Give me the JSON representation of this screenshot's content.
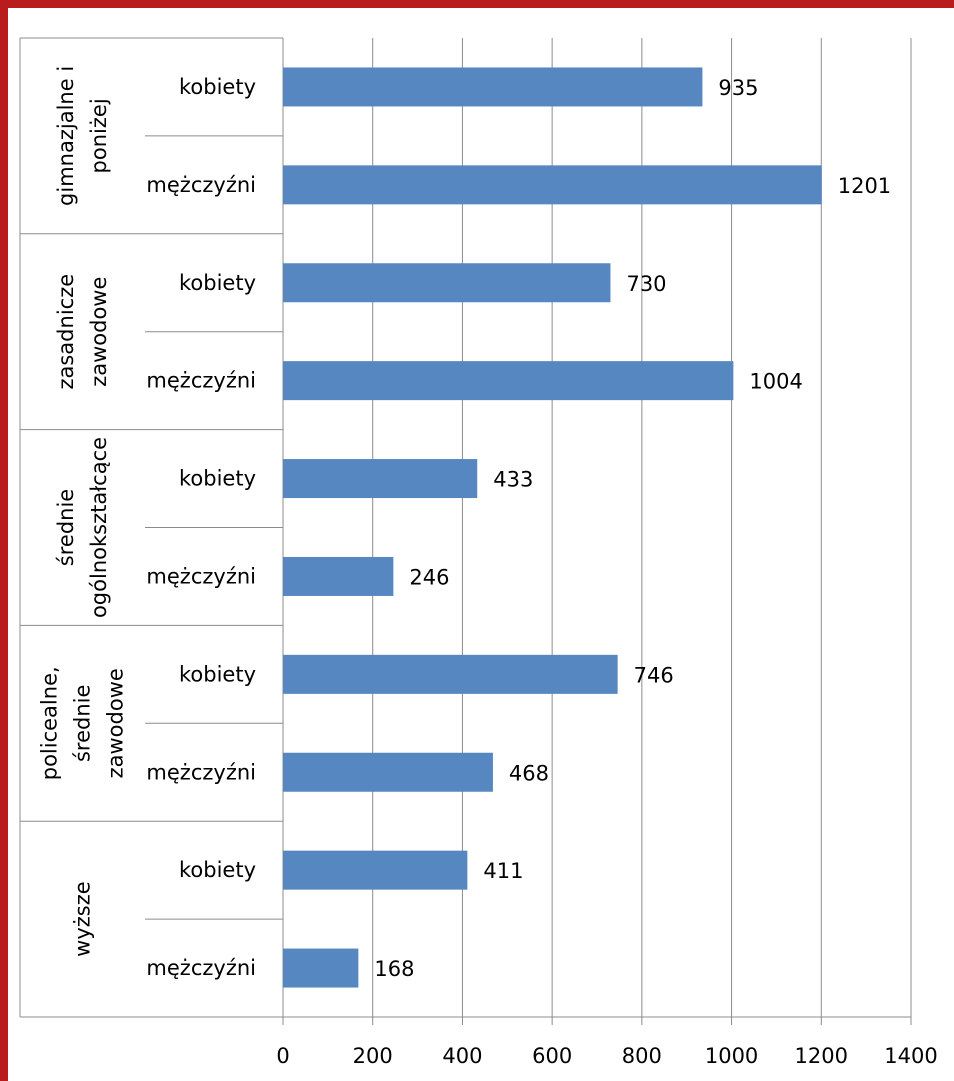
{
  "chart_data": {
    "type": "bar",
    "orientation": "horizontal",
    "groups": [
      {
        "label": [
          "gimnazjalne i",
          "poniżej"
        ],
        "items": [
          {
            "category": "kobiety",
            "value": 935
          },
          {
            "category": "mężczyźni",
            "value": 1201
          }
        ]
      },
      {
        "label": [
          "zasadnicze",
          "zawodowe"
        ],
        "items": [
          {
            "category": "kobiety",
            "value": 730
          },
          {
            "category": "mężczyźni",
            "value": 1004
          }
        ]
      },
      {
        "label": [
          "średnie",
          "ogólnokształcące"
        ],
        "items": [
          {
            "category": "kobiety",
            "value": 433
          },
          {
            "category": "mężczyźni",
            "value": 246
          }
        ]
      },
      {
        "label": [
          "policealne,",
          "średnie",
          "zawodowe"
        ],
        "items": [
          {
            "category": "kobiety",
            "value": 746
          },
          {
            "category": "mężczyźni",
            "value": 468
          }
        ]
      },
      {
        "label": [
          "wyższe"
        ],
        "items": [
          {
            "category": "kobiety",
            "value": 411
          },
          {
            "category": "mężczyźni",
            "value": 168
          }
        ]
      }
    ],
    "xlim": [
      0,
      1400
    ],
    "xticks": [
      0,
      200,
      400,
      600,
      800,
      1000,
      1200,
      1400
    ],
    "grid": true,
    "bar_color": "#5687c1",
    "grid_color": "#8c8c8c",
    "show_data_labels": true
  }
}
